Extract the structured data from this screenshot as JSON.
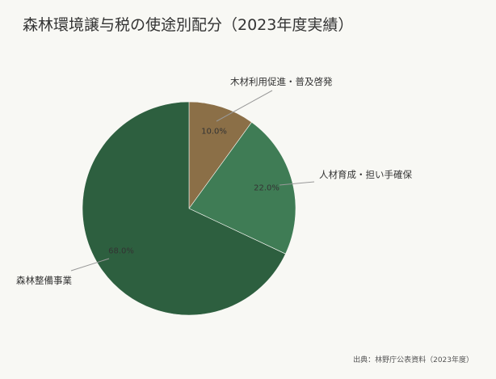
{
  "title": "森林環境譲与税の使途別配分（2023年度実績）",
  "source": "出典：林野庁公表資料（2023年度）",
  "chart_data": {
    "type": "pie",
    "title": "森林環境譲与税の使途別配分（2023年度実績）",
    "start_angle": "12 o'clock, clockwise",
    "categories": [
      "木材利用促進・普及啓発",
      "人材育成・担い手確保",
      "森林整備事業"
    ],
    "values": [
      10.0,
      22.0,
      68.0
    ],
    "value_labels": [
      "10.0%",
      "22.0%",
      "68.0%"
    ],
    "colors": [
      "#8b6f47",
      "#3f7c55",
      "#2d5f3f"
    ],
    "legend": "none (direct labels with leader lines)",
    "unit": "%"
  },
  "slices": [
    {
      "label": "木材利用促進・普及啓発",
      "pct": "10.0%"
    },
    {
      "label": "人材育成・担い手確保",
      "pct": "22.0%"
    },
    {
      "label": "森林整備事業",
      "pct": "68.0%"
    }
  ]
}
